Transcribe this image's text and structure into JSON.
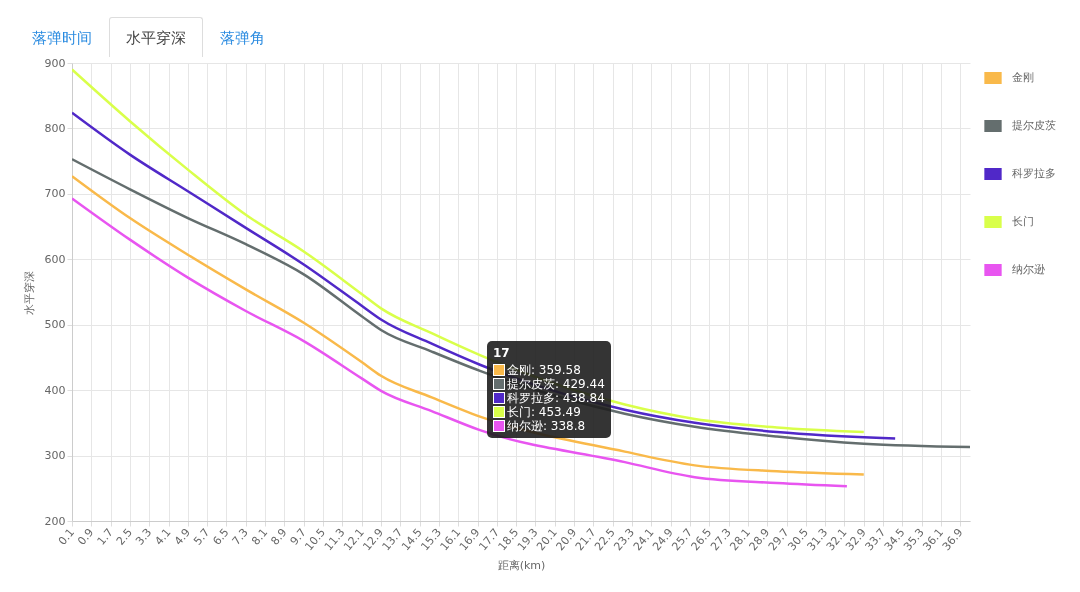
{
  "chart_data": {
    "type": "line",
    "xlabel": "距离(km)",
    "ylabel": "水平穿深",
    "xlim": [
      0.1,
      37.3
    ],
    "ylim": [
      200,
      900
    ],
    "xticks": [
      0.1,
      0.9,
      1.7,
      2.5,
      3.3,
      4.1,
      4.9,
      5.7,
      6.5,
      7.3,
      8.1,
      8.9,
      9.7,
      10.5,
      11.3,
      12.1,
      12.9,
      13.7,
      14.5,
      15.3,
      16.1,
      16.9,
      17.7,
      18.5,
      19.3,
      20.1,
      20.9,
      21.7,
      22.5,
      23.3,
      24.1,
      24.9,
      25.7,
      26.5,
      27.3,
      28.1,
      28.9,
      29.7,
      30.5,
      31.3,
      32.1,
      32.9,
      33.7,
      34.5,
      35.3,
      36.1,
      36.9
    ],
    "yticks": [
      200,
      300,
      400,
      500,
      600,
      700,
      800,
      900
    ],
    "grid": true,
    "legend": "top right",
    "series": [
      {
        "name": "金刚",
        "color": "#f9b94a",
        "x": [
          0.1,
          2.5,
          4.9,
          7.3,
          9.7,
          12.1,
          12.9,
          15,
          17,
          23,
          25.9,
          29.3,
          32.9
        ],
        "values": [
          727,
          663,
          607,
          554,
          503,
          443,
          422,
          389,
          359.58,
          306,
          285,
          276,
          271
        ]
      },
      {
        "name": "提尔皮茨",
        "color": "#646e6e",
        "x": [
          0.1,
          2.5,
          4.9,
          7.3,
          9.7,
          12.1,
          12.9,
          15,
          17,
          23,
          25.9,
          29.3,
          32.9,
          37.3
        ],
        "values": [
          753,
          707,
          663,
          623,
          577,
          513,
          492,
          459,
          429.44,
          364,
          344,
          329,
          318,
          313
        ]
      },
      {
        "name": "科罗拉多",
        "color": "#5028c8",
        "x": [
          0.1,
          2.5,
          4.9,
          7.3,
          9.7,
          12.1,
          12.9,
          15,
          17,
          23,
          25.9,
          29.3,
          34.2
        ],
        "values": [
          824,
          760,
          704,
          648,
          592,
          529,
          508,
          471,
          438.84,
          370,
          350,
          336,
          326
        ]
      },
      {
        "name": "长门",
        "color": "#d9ff4a",
        "x": [
          0.1,
          2.5,
          4.9,
          7.3,
          9.7,
          12.1,
          12.9,
          15,
          17,
          23,
          25.9,
          29.3,
          32.9
        ],
        "values": [
          890,
          811,
          737,
          668,
          612,
          547,
          525,
          487,
          453.49,
          378,
          356,
          343,
          336
        ]
      },
      {
        "name": "纳尔逊",
        "color": "#e855f0",
        "x": [
          0.1,
          2.5,
          4.9,
          7.3,
          9.7,
          12.1,
          12.9,
          15,
          17,
          23,
          25.9,
          29.3,
          32.2
        ],
        "values": [
          693,
          630,
          572,
          521,
          475,
          418,
          399,
          368,
          338.8,
          290,
          267,
          258,
          253
        ]
      }
    ],
    "annotations": [
      "落弹时间",
      "水平穿深",
      "落弹角",
      {
        "text": "17",
        "x": 17,
        "y": 453.49
      },
      "金刚: 359.58",
      "提尔皮茨: 429.44",
      "科罗拉多: 438.84",
      "长门: 453.49",
      "纳尔逊: 338.8"
    ]
  }
}
